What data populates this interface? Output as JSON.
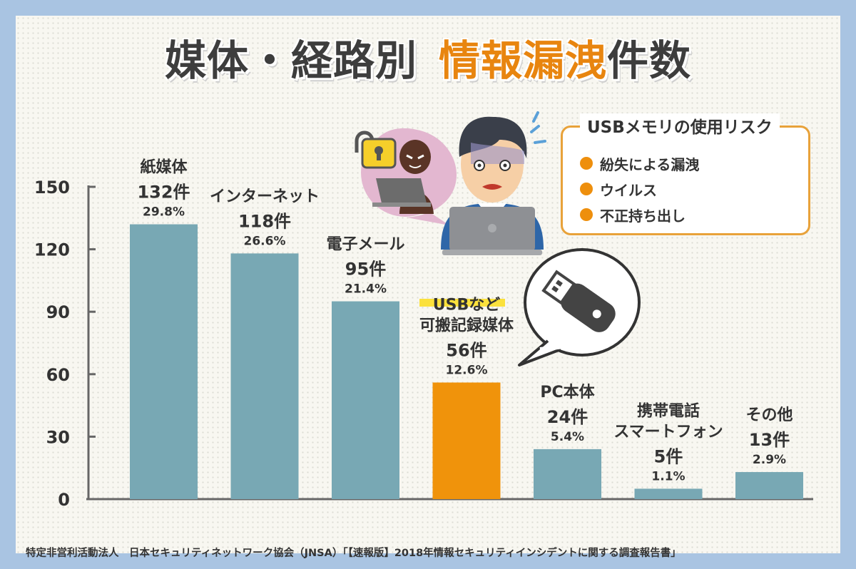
{
  "title": {
    "main": "媒体・経路別",
    "highlight": "情報漏洩",
    "suffix": "件数"
  },
  "colors": {
    "bar": "#78a8b4",
    "highlight_bar": "#f0930b",
    "accent": "#e8850f",
    "border": "#a9c4e2"
  },
  "risk_box": {
    "title": "USBメモリの使用リスク",
    "items": [
      "紛失による漏洩",
      "ウイルス",
      "不正持ち出し"
    ]
  },
  "footer": "特定非営利活動法人　日本セキュリティネットワーク協会（JNSA）「【速報版】2018年情報セキュリティインシデントに関する調査報告書」",
  "icons": [
    "worried-user-with-laptop-icon",
    "hacker-icon",
    "unlocked-padlock-icon",
    "usb-memory-icon"
  ],
  "chart_data": {
    "type": "bar",
    "title": "媒体・経路別 情報漏洩件数",
    "categories": [
      [
        "紙媒体"
      ],
      [
        "インターネット"
      ],
      [
        "電子メール"
      ],
      [
        "USBなど",
        "可搬記録媒体"
      ],
      [
        "PC本体"
      ],
      [
        "携帯電話",
        "スマートフォン"
      ],
      [
        "その他"
      ]
    ],
    "values": [
      132,
      118,
      95,
      56,
      24,
      5,
      13
    ],
    "value_labels": [
      "132件",
      "118件",
      "95件",
      "56件",
      "24件",
      "5件",
      "13件"
    ],
    "percent_labels": [
      "29.8%",
      "26.6%",
      "21.4%",
      "12.6%",
      "5.4%",
      "1.1%",
      "2.9%"
    ],
    "highlight_index": 3,
    "ylim": [
      0,
      150
    ],
    "yticks": [
      0,
      30,
      60,
      90,
      120,
      150
    ],
    "grid": false,
    "legend": "none"
  }
}
